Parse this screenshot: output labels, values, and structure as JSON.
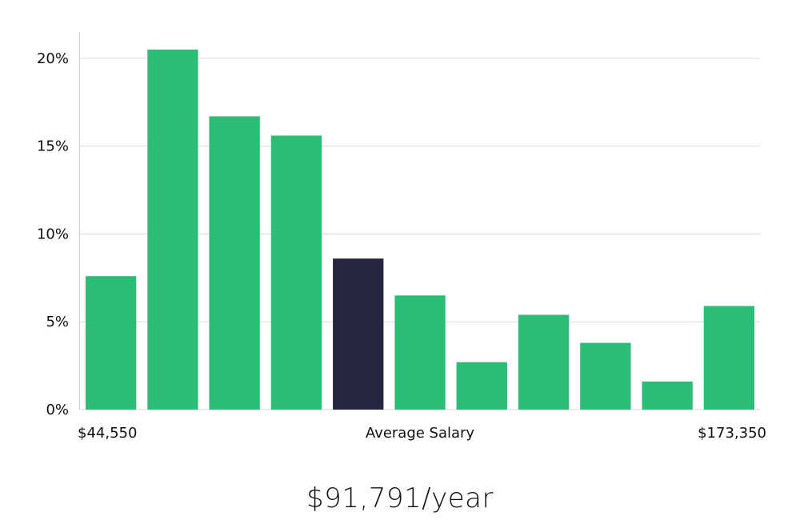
{
  "chart_data": {
    "type": "bar",
    "title": "",
    "xlabel": "Average Salary",
    "ylabel": "",
    "ylim": [
      0,
      21.5
    ],
    "yticks": [
      0,
      5,
      10,
      15,
      20
    ],
    "ytick_labels": [
      "0%",
      "5%",
      "10%",
      "15%",
      "20%"
    ],
    "grid": true,
    "x_min_label": "$44,550",
    "x_max_label": "$173,350",
    "highlight_index": 4,
    "values": [
      7.6,
      20.5,
      16.7,
      15.6,
      8.6,
      6.5,
      2.7,
      5.4,
      3.8,
      1.6,
      5.9
    ],
    "colors": {
      "bar": "#2bbd76",
      "highlight": "#272442",
      "grid": "#d9d9d9",
      "axis": "#cfcfcf"
    }
  },
  "summary": {
    "average_salary": "$91,791/year"
  }
}
